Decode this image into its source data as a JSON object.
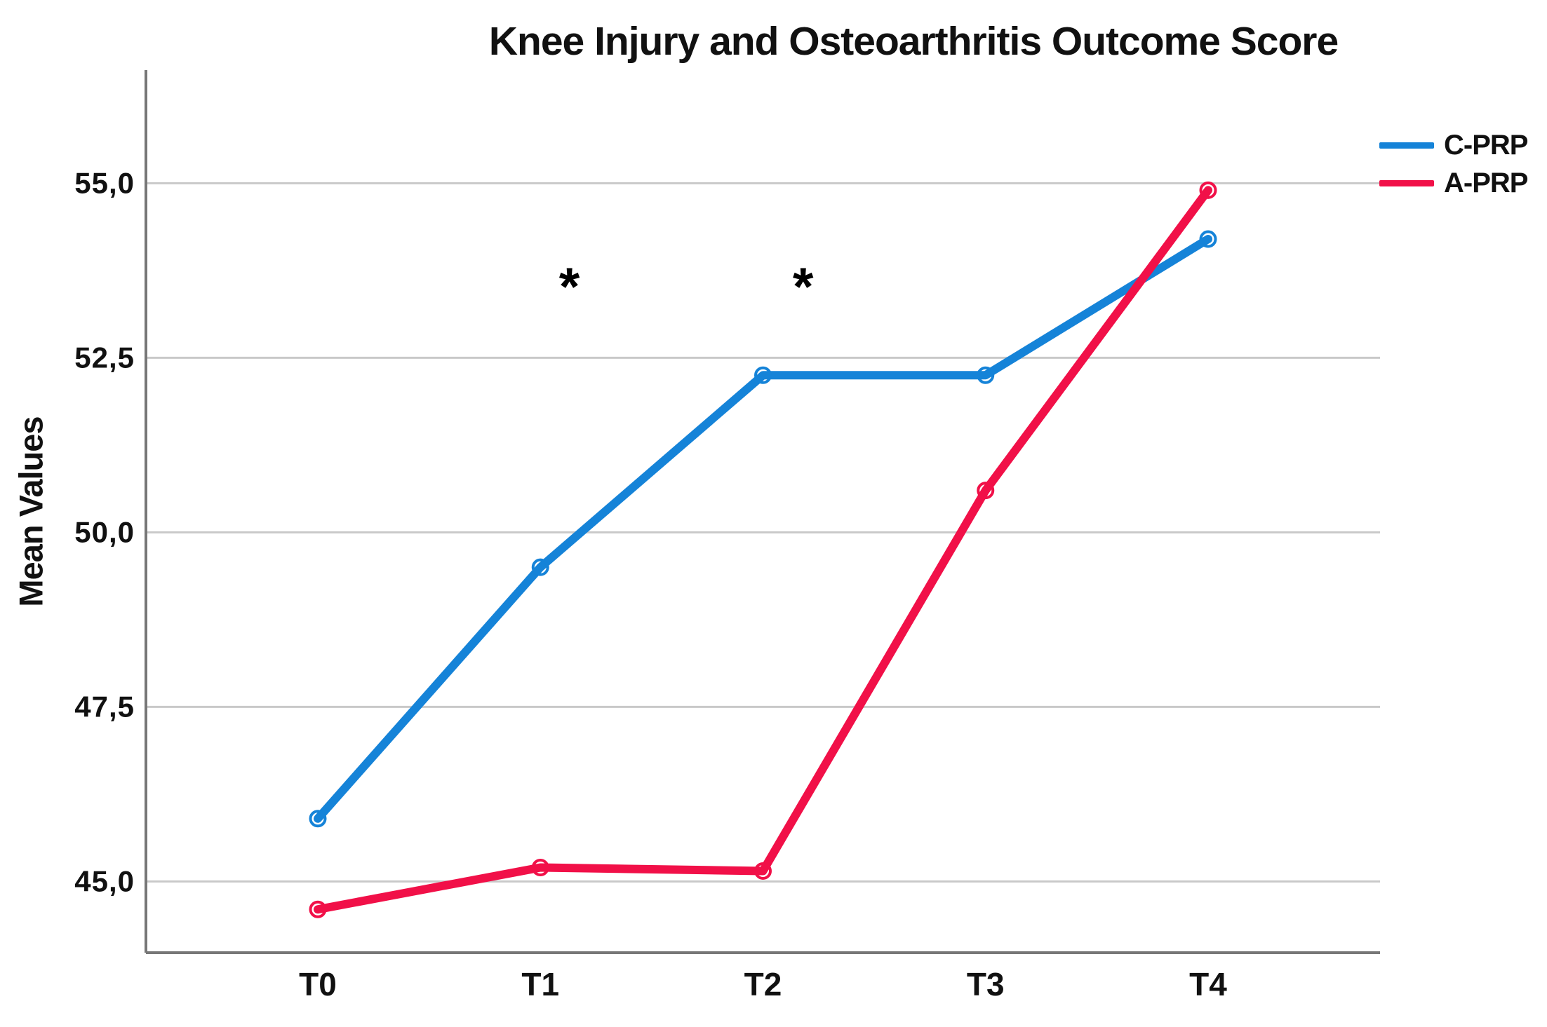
{
  "chart_data": {
    "type": "line",
    "title": "Knee Injury and Osteoarthritis Outcome Score",
    "ylabel": "Mean Values",
    "xlabel": "",
    "categories": [
      "T0",
      "T1",
      "T2",
      "T3",
      "T4"
    ],
    "series": [
      {
        "name": "C-PRP",
        "slug": "c-prp",
        "color": "#1583D8",
        "values": [
          45.9,
          49.5,
          52.25,
          52.25,
          54.2
        ]
      },
      {
        "name": "A-PRP",
        "slug": "a-prp",
        "color": "#F11048",
        "values": [
          44.6,
          45.2,
          45.15,
          50.6,
          54.9
        ]
      }
    ],
    "y_ticks": [
      {
        "value": 45.0,
        "label": "45,0"
      },
      {
        "value": 47.5,
        "label": "47,5"
      },
      {
        "value": 50.0,
        "label": "50,0"
      },
      {
        "value": 52.5,
        "label": "52,5"
      },
      {
        "value": 55.0,
        "label": "55,0"
      }
    ],
    "ylim": [
      43.98,
      56.62
    ],
    "grid": "horizontal",
    "grid_color": "#C9C9C9",
    "axis_color": "#777777",
    "tick_label_color": "#111111",
    "legend_position": "top-right",
    "annotations": [
      {
        "text": "*",
        "x": 1.13,
        "y": 53.6
      },
      {
        "text": "*",
        "x": 2.18,
        "y": 53.6
      }
    ]
  }
}
